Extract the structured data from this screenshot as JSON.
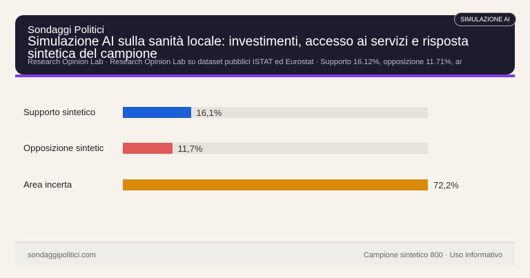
{
  "header": {
    "brand": "Sondaggi Politici",
    "title": "Simulazione AI sulla sanità locale: investimenti, accesso ai servizi e risposta sintetica del campione",
    "subtitle": "Research Opinion Lab · Research Opinion Lab su dataset pubblici ISTAT ed Eurostat · Supporto 16.12%, opposizione 11.71%, ar",
    "badge": "SIMULAZIONE AI"
  },
  "chart_data": {
    "type": "bar",
    "orientation": "horizontal",
    "categories": [
      "Supporto sintetico",
      "Opposizione sintetic",
      "Area incerta"
    ],
    "values": [
      16.1,
      11.7,
      72.2
    ],
    "value_labels": [
      "16,1%",
      "11,7%",
      "72,2%"
    ],
    "colors": [
      "#1a5fd6",
      "#e05a5a",
      "#d98a0a"
    ],
    "track_color": "#e7e2dc",
    "accent": "#7c3aed"
  },
  "footer": {
    "left": "sondaggipolitici.com",
    "right": "Campione sintetico 800 · Uso informativo"
  }
}
